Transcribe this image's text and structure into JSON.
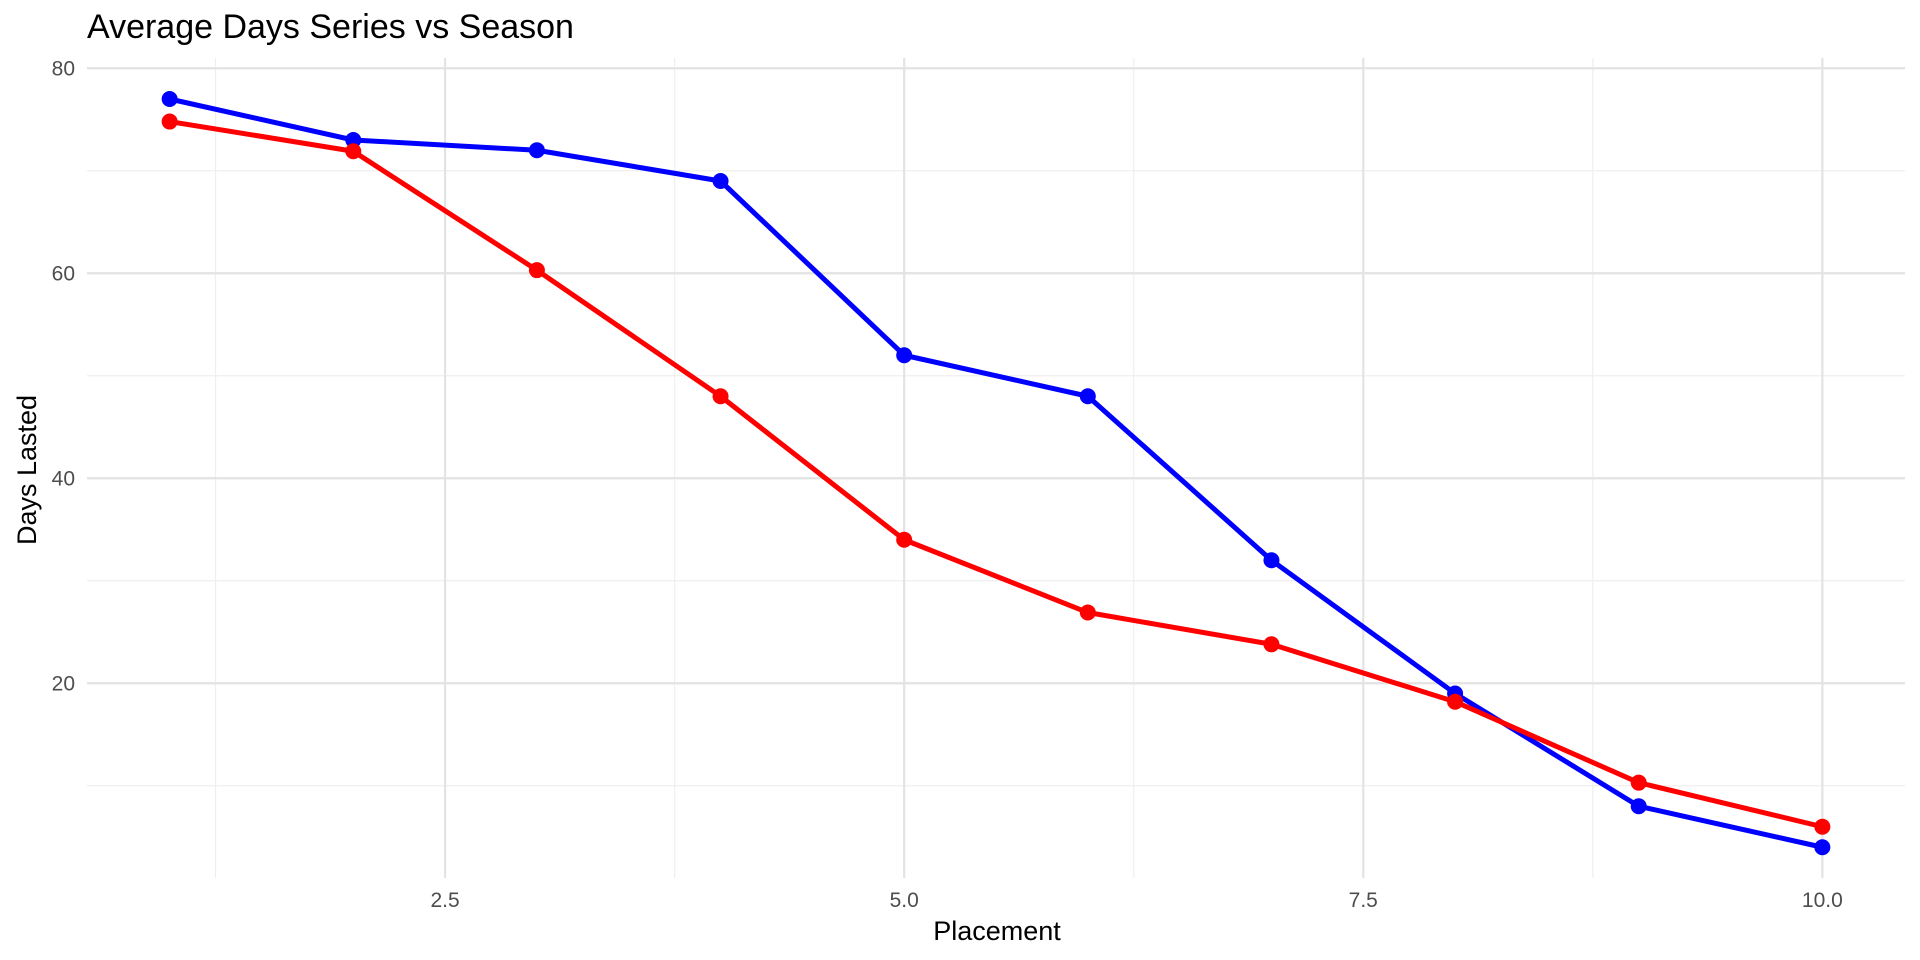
{
  "chart_data": {
    "type": "line",
    "title": "Average Days Series vs Season",
    "xlabel": "Placement",
    "ylabel": "Days Lasted",
    "x": [
      1,
      2,
      3,
      4,
      5,
      6,
      7,
      8,
      9,
      10
    ],
    "xlim": [
      0.55,
      10.45
    ],
    "ylim": [
      1,
      81
    ],
    "x_ticks": [
      2.5,
      5.0,
      7.5,
      10.0
    ],
    "x_tick_labels": [
      "2.5",
      "5.0",
      "7.5",
      "10.0"
    ],
    "x_minor_ticks": [
      1.25,
      3.75,
      6.25,
      8.75
    ],
    "y_ticks": [
      20,
      40,
      60,
      80
    ],
    "y_tick_labels": [
      "20",
      "40",
      "60",
      "80"
    ],
    "y_minor_ticks": [
      10,
      30,
      50,
      70
    ],
    "grid": true,
    "legend": "none",
    "series": [
      {
        "color": "#0000ff",
        "values": [
          77,
          73,
          72,
          69,
          52,
          48,
          32,
          19,
          8,
          4
        ]
      },
      {
        "color": "#ff0000",
        "values": [
          74.8,
          71.9,
          60.3,
          48,
          34,
          26.9,
          23.8,
          18.2,
          10.3,
          6
        ]
      }
    ]
  }
}
